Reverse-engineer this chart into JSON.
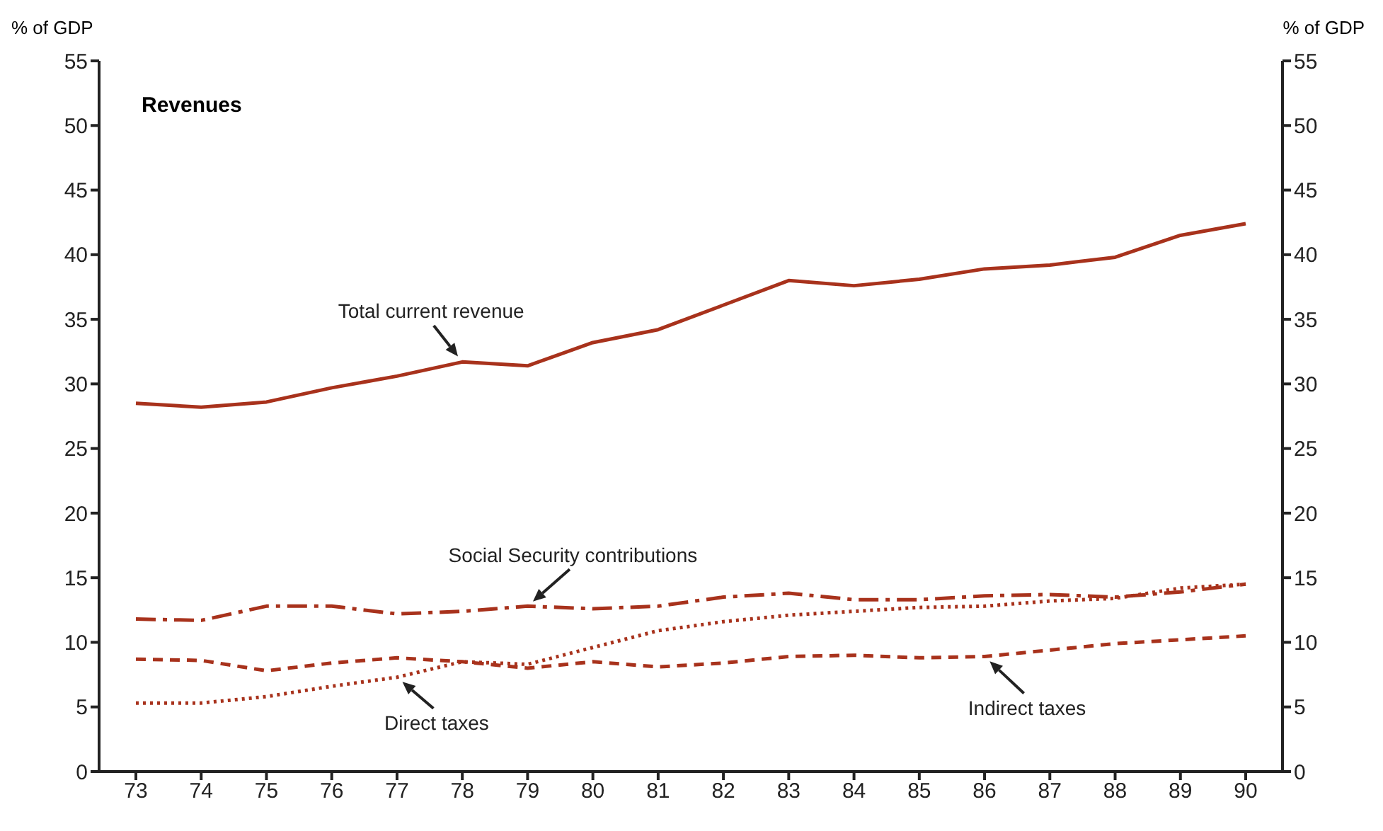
{
  "chart_data": {
    "type": "line",
    "title": "Revenues",
    "ylabel": "% of GDP",
    "y2label": "% of GDP",
    "categories": [
      "73",
      "74",
      "75",
      "76",
      "77",
      "78",
      "79",
      "80",
      "81",
      "82",
      "83",
      "84",
      "85",
      "86",
      "87",
      "88",
      "89",
      "90"
    ],
    "series": [
      {
        "color": "#a8321c",
        "line_style": "solid",
        "values": [
          28.5,
          28.2,
          28.6,
          29.7,
          30.6,
          31.7,
          31.4,
          33.2,
          34.2,
          36.1,
          38.0,
          37.6,
          38.1,
          38.9,
          39.2,
          39.8,
          41.5,
          42.4
        ]
      },
      {
        "color": "#a8321c",
        "line_style": "dashdot",
        "values": [
          11.8,
          11.7,
          12.8,
          12.8,
          12.2,
          12.4,
          12.8,
          12.6,
          12.8,
          13.5,
          13.8,
          13.3,
          13.3,
          13.6,
          13.7,
          13.5,
          13.9,
          14.5
        ]
      },
      {
        "color": "#a8321c",
        "line_style": "dotted",
        "values": [
          5.3,
          5.3,
          5.8,
          6.6,
          7.3,
          8.5,
          8.3,
          9.6,
          10.9,
          11.6,
          12.1,
          12.4,
          12.7,
          12.8,
          13.2,
          13.4,
          14.2,
          14.5
        ]
      },
      {
        "color": "#a8321c",
        "line_style": "dashed",
        "values": [
          8.7,
          8.6,
          7.8,
          8.4,
          8.8,
          8.5,
          8.0,
          8.5,
          8.1,
          8.4,
          8.9,
          9.0,
          8.8,
          8.9,
          9.4,
          9.9,
          10.2,
          10.5
        ]
      }
    ],
    "annotations": [
      {
        "text": "Total current revenue",
        "x": "78",
        "y": 31.7
      },
      {
        "text": "Social Security contributions",
        "x": "79",
        "y": 12.8
      },
      {
        "text": "Direct taxes",
        "x": "77",
        "y": 7.3
      },
      {
        "text": "Indirect taxes",
        "x": "86",
        "y": 8.9
      }
    ],
    "ylim": [
      0,
      55
    ],
    "yticks": [
      0,
      5,
      10,
      15,
      20,
      25,
      30,
      35,
      40,
      45,
      50,
      55
    ],
    "y2lim": [
      0,
      55
    ],
    "y2ticks": [
      0,
      5,
      10,
      15,
      20,
      25,
      30,
      35,
      40,
      45,
      50,
      55
    ],
    "grid": false,
    "legend": false,
    "marker": "none"
  }
}
